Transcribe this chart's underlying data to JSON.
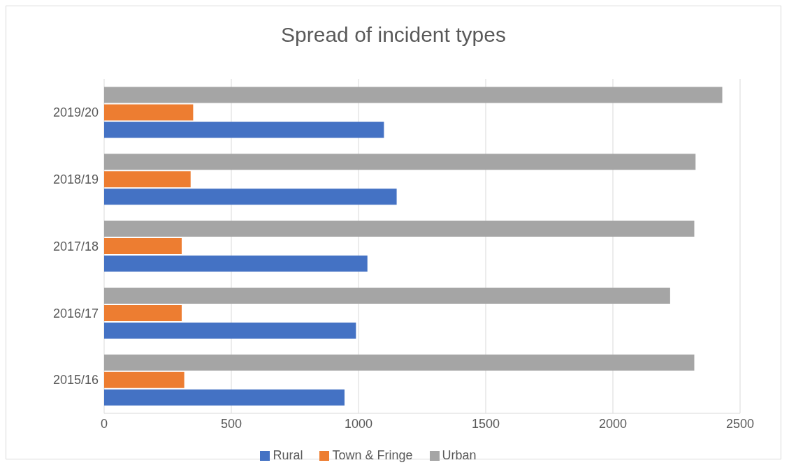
{
  "chart_data": {
    "type": "bar",
    "title": "Spread of incident types",
    "orientation": "horizontal",
    "categories": [
      "2019/20",
      "2018/19",
      "2017/18",
      "2016/17",
      "2015/16"
    ],
    "series": [
      {
        "name": "Urban",
        "color": "#a5a5a5",
        "values": [
          2430,
          2325,
          2320,
          2225,
          2320
        ]
      },
      {
        "name": "Town & Fringe",
        "color": "#ed7d31",
        "values": [
          350,
          340,
          305,
          305,
          315
        ]
      },
      {
        "name": "Rural",
        "color": "#4472c4",
        "values": [
          1100,
          1150,
          1035,
          990,
          945
        ]
      }
    ],
    "xlim": [
      0,
      2500
    ],
    "xticks": [
      0,
      500,
      1000,
      1500,
      2000,
      2500
    ],
    "grid": "x",
    "legend": "bottom"
  }
}
